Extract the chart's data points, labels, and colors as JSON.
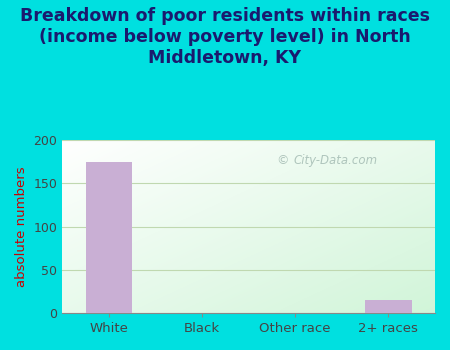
{
  "title": "Breakdown of poor residents within races\n(income below poverty level) in North\nMiddletown, KY",
  "categories": [
    "White",
    "Black",
    "Other race",
    "2+ races"
  ],
  "values": [
    175,
    0,
    0,
    15
  ],
  "bar_color": "#c9afd4",
  "ylabel": "absolute numbers",
  "ylim": [
    0,
    200
  ],
  "yticks": [
    0,
    50,
    100,
    150,
    200
  ],
  "background_outer": "#00e0e0",
  "title_fontsize": 12.5,
  "title_color": "#1a1a6e",
  "watermark_text": "City-Data.com",
  "grid_color": "#c0d8b0",
  "ylabel_color": "#cc0000",
  "tick_label_color": "#444444",
  "bar_width": 0.5
}
